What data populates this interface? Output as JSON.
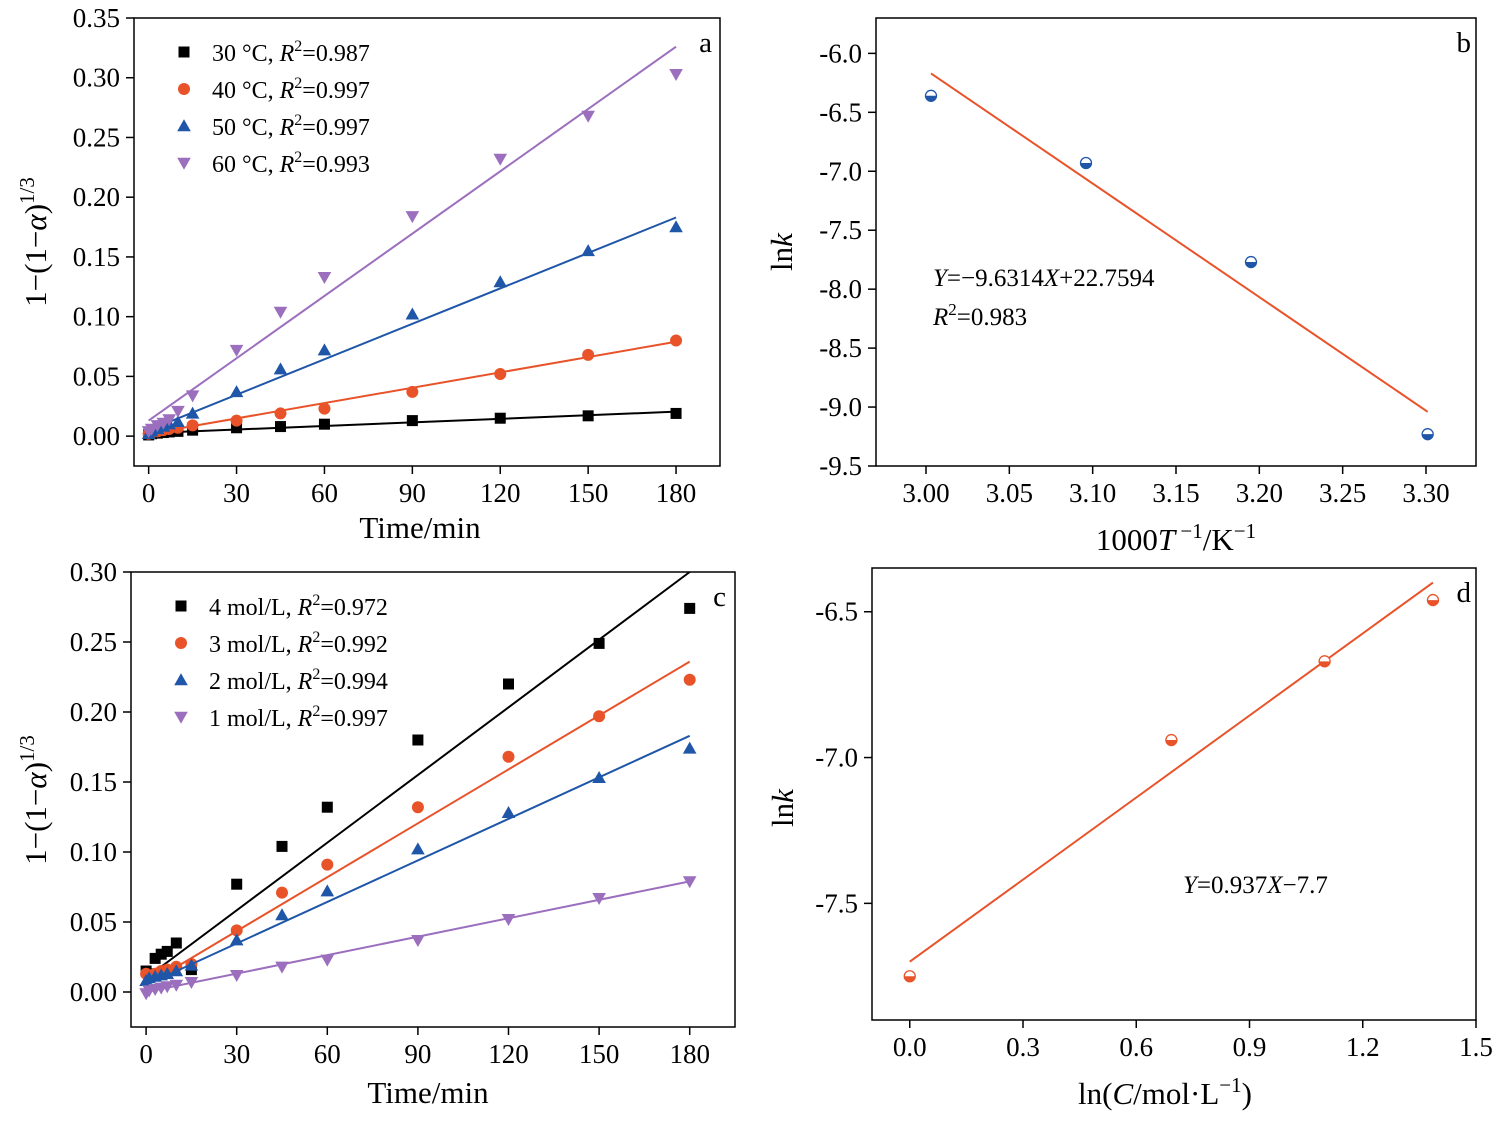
{
  "colors": {
    "black": "#000000",
    "orange": "#E8532A",
    "blue": "#1F56A8",
    "purple": "#9B6FBE",
    "line_b": "#E8532A",
    "line_d": "#E8532A",
    "marker_b": "#1F56A8",
    "marker_d": "#E8532A"
  },
  "chart_data": [
    {
      "panel": "a",
      "type": "scatter",
      "xlabel": "Time/min",
      "ylabel_parts": [
        "1−(1−",
        "α",
        ")",
        "1/3"
      ],
      "xlim": [
        -5,
        195
      ],
      "ylim": [
        -0.025,
        0.35
      ],
      "xticks": [
        0,
        30,
        60,
        90,
        120,
        150,
        180
      ],
      "xtick_labels": [
        "0",
        "30",
        "60",
        "90",
        "120",
        "150",
        "180"
      ],
      "yticks": [
        0.0,
        0.05,
        0.1,
        0.15,
        0.2,
        0.25,
        0.3,
        0.35
      ],
      "ytick_labels": [
        "0.00",
        "0.05",
        "0.10",
        "0.15",
        "0.20",
        "0.25",
        "0.30",
        "0.35"
      ],
      "legend_position": "top-left",
      "series": [
        {
          "name": "30 °C",
          "r2_label": "R",
          "r2_value": "=0.987",
          "marker": "square",
          "color": "black",
          "x": [
            0,
            1,
            3,
            5,
            7,
            10,
            15,
            30,
            45,
            60,
            90,
            120,
            150,
            180
          ],
          "y": [
            0.001,
            0.002,
            0.0025,
            0.003,
            0.0035,
            0.004,
            0.005,
            0.007,
            0.008,
            0.01,
            0.013,
            0.015,
            0.017,
            0.019
          ],
          "fit": [
            [
              0,
              0.0025
            ],
            [
              180,
              0.0205
            ]
          ]
        },
        {
          "name": "40 °C",
          "r2_label": "R",
          "r2_value": "=0.997",
          "marker": "circle",
          "color": "orange",
          "x": [
            0,
            1,
            3,
            5,
            7,
            10,
            15,
            30,
            45,
            60,
            90,
            120,
            150,
            180
          ],
          "y": [
            0.002,
            0.003,
            0.004,
            0.005,
            0.006,
            0.007,
            0.009,
            0.013,
            0.019,
            0.023,
            0.037,
            0.052,
            0.068,
            0.08
          ],
          "fit": [
            [
              0,
              0.002
            ],
            [
              180,
              0.079
            ]
          ]
        },
        {
          "name": "50 °C",
          "r2_label": "R",
          "r2_value": "=0.997",
          "marker": "triangle-up",
          "color": "blue",
          "x": [
            0,
            1,
            3,
            5,
            7,
            10,
            15,
            30,
            45,
            60,
            90,
            120,
            150,
            180
          ],
          "y": [
            0.002,
            0.004,
            0.006,
            0.008,
            0.01,
            0.012,
            0.019,
            0.037,
            0.056,
            0.072,
            0.102,
            0.129,
            0.155,
            0.175
          ],
          "fit": [
            [
              0,
              0.005
            ],
            [
              180,
              0.183
            ]
          ]
        },
        {
          "name": "60 °C",
          "r2_label": "R",
          "r2_value": "=0.993",
          "marker": "triangle-down",
          "color": "purple",
          "x": [
            0,
            1,
            3,
            5,
            7,
            10,
            15,
            30,
            45,
            60,
            90,
            120,
            150,
            180
          ],
          "y": [
            0.004,
            0.006,
            0.009,
            0.011,
            0.014,
            0.021,
            0.034,
            0.072,
            0.104,
            0.133,
            0.184,
            0.232,
            0.268,
            0.303
          ],
          "fit": [
            [
              0,
              0.013
            ],
            [
              180,
              0.326
            ]
          ]
        }
      ]
    },
    {
      "panel": "b",
      "type": "scatter",
      "xlabel_parts": [
        "1000",
        "T",
        " −1",
        "/K",
        "−1"
      ],
      "ylabel_parts": [
        "ln",
        "k"
      ],
      "xlim": [
        2.97,
        3.33
      ],
      "ylim": [
        -9.5,
        -5.7
      ],
      "xticks": [
        3.0,
        3.05,
        3.1,
        3.15,
        3.2,
        3.25,
        3.3
      ],
      "xtick_labels": [
        "3.00",
        "3.05",
        "3.10",
        "3.15",
        "3.20",
        "3.25",
        "3.30"
      ],
      "yticks": [
        -9.5,
        -9.0,
        -8.5,
        -8.0,
        -7.5,
        -7.0,
        -6.5,
        -6.0
      ],
      "ytick_labels": [
        "-9.5",
        "-9.0",
        "-8.5",
        "-8.0",
        "-7.5",
        "-7.0",
        "-6.5",
        "-6.0"
      ],
      "series": [
        {
          "marker": "half-circle",
          "color": "marker_b",
          "x": [
            3.003,
            3.096,
            3.195,
            3.301
          ],
          "y": [
            -6.36,
            -6.93,
            -7.77,
            -9.23
          ],
          "fit": [
            [
              3.003,
              -6.17
            ],
            [
              3.301,
              -9.04
            ]
          ]
        }
      ],
      "equation": {
        "y_var": "Y",
        "mid": "=−9.6314",
        "x_var": "X",
        "tail": "+22.7594"
      },
      "r2": {
        "label": "R",
        "sup": "2",
        "value": "=0.983"
      }
    },
    {
      "panel": "c",
      "type": "scatter",
      "xlabel": "Time/min",
      "ylabel_parts": [
        "1−(1−",
        "α",
        ")",
        "1/3"
      ],
      "xlim": [
        -5,
        195
      ],
      "ylim": [
        -0.025,
        0.3
      ],
      "xticks": [
        0,
        30,
        60,
        90,
        120,
        150,
        180
      ],
      "xtick_labels": [
        "0",
        "30",
        "60",
        "90",
        "120",
        "150",
        "180"
      ],
      "yticks": [
        0.0,
        0.05,
        0.1,
        0.15,
        0.2,
        0.25,
        0.3
      ],
      "ytick_labels": [
        "0.00",
        "0.05",
        "0.10",
        "0.15",
        "0.20",
        "0.25",
        "0.30"
      ],
      "legend_position": "top-left",
      "series": [
        {
          "name": "4 mol/L",
          "r2_label": "R",
          "r2_value": "=0.972",
          "marker": "square",
          "color": "black",
          "x": [
            0,
            1,
            3,
            5,
            7,
            10,
            15,
            30,
            45,
            60,
            90,
            120,
            150,
            180
          ],
          "y": [
            0.015,
            0.013,
            0.024,
            0.027,
            0.029,
            0.035,
            0.016,
            0.077,
            0.104,
            0.132,
            0.18,
            0.22,
            0.249,
            0.274
          ],
          "fit": [
            [
              0,
              0.01
            ],
            [
              180,
              0.3
            ]
          ]
        },
        {
          "name": "3 mol/L",
          "r2_label": "R",
          "r2_value": "=0.992",
          "marker": "circle",
          "color": "orange",
          "x": [
            0,
            1,
            3,
            5,
            7,
            10,
            15,
            30,
            45,
            60,
            90,
            120,
            150,
            180
          ],
          "y": [
            0.013,
            0.012,
            0.013,
            0.015,
            0.016,
            0.018,
            0.02,
            0.044,
            0.071,
            0.091,
            0.132,
            0.168,
            0.197,
            0.223
          ],
          "fit": [
            [
              0,
              0.005
            ],
            [
              180,
              0.236
            ]
          ]
        },
        {
          "name": "2 mol/L",
          "r2_label": "R",
          "r2_value": "=0.994",
          "marker": "triangle-up",
          "color": "blue",
          "x": [
            0,
            1,
            3,
            5,
            7,
            10,
            15,
            30,
            45,
            60,
            90,
            120,
            150,
            180
          ],
          "y": [
            0.008,
            0.01,
            0.011,
            0.012,
            0.013,
            0.015,
            0.019,
            0.037,
            0.055,
            0.072,
            0.102,
            0.128,
            0.153,
            0.174
          ],
          "fit": [
            [
              0,
              0.005
            ],
            [
              180,
              0.183
            ]
          ]
        },
        {
          "name": "1 mol/L",
          "r2_label": "R",
          "r2_value": "=0.997",
          "marker": "triangle-down",
          "color": "purple",
          "x": [
            0,
            1,
            3,
            5,
            7,
            10,
            15,
            30,
            45,
            60,
            90,
            120,
            150,
            180
          ],
          "y": [
            -0.001,
            0.001,
            0.002,
            0.003,
            0.004,
            0.005,
            0.007,
            0.012,
            0.018,
            0.023,
            0.037,
            0.052,
            0.067,
            0.079
          ],
          "fit": [
            [
              0,
              0.0
            ],
            [
              180,
              0.079
            ]
          ]
        }
      ]
    },
    {
      "panel": "d",
      "type": "scatter",
      "xlabel_parts": [
        "ln(",
        "C",
        "/mol·L",
        "−1",
        ")"
      ],
      "ylabel_parts": [
        "ln",
        "k"
      ],
      "xlim": [
        -0.1,
        1.5
      ],
      "ylim": [
        -7.9,
        -6.35
      ],
      "xticks": [
        0.0,
        0.3,
        0.6,
        0.9,
        1.2,
        1.5
      ],
      "xtick_labels": [
        "0.0",
        "0.3",
        "0.6",
        "0.9",
        "1.2",
        "1.5"
      ],
      "yticks": [
        -7.5,
        -7.0,
        -6.5
      ],
      "ytick_labels": [
        "-7.5",
        "-7.0",
        "-6.5"
      ],
      "series": [
        {
          "marker": "half-circle",
          "color": "marker_d",
          "x": [
            0.0,
            0.693,
            1.099,
            1.386
          ],
          "y": [
            -7.75,
            -6.94,
            -6.67,
            -6.46
          ],
          "fit": [
            [
              0.0,
              -7.7
            ],
            [
              1.386,
              -6.4
            ]
          ]
        }
      ],
      "equation": {
        "y_var": "Y",
        "mid": "=0.937",
        "x_var": "X",
        "tail": "−7.7"
      }
    }
  ]
}
